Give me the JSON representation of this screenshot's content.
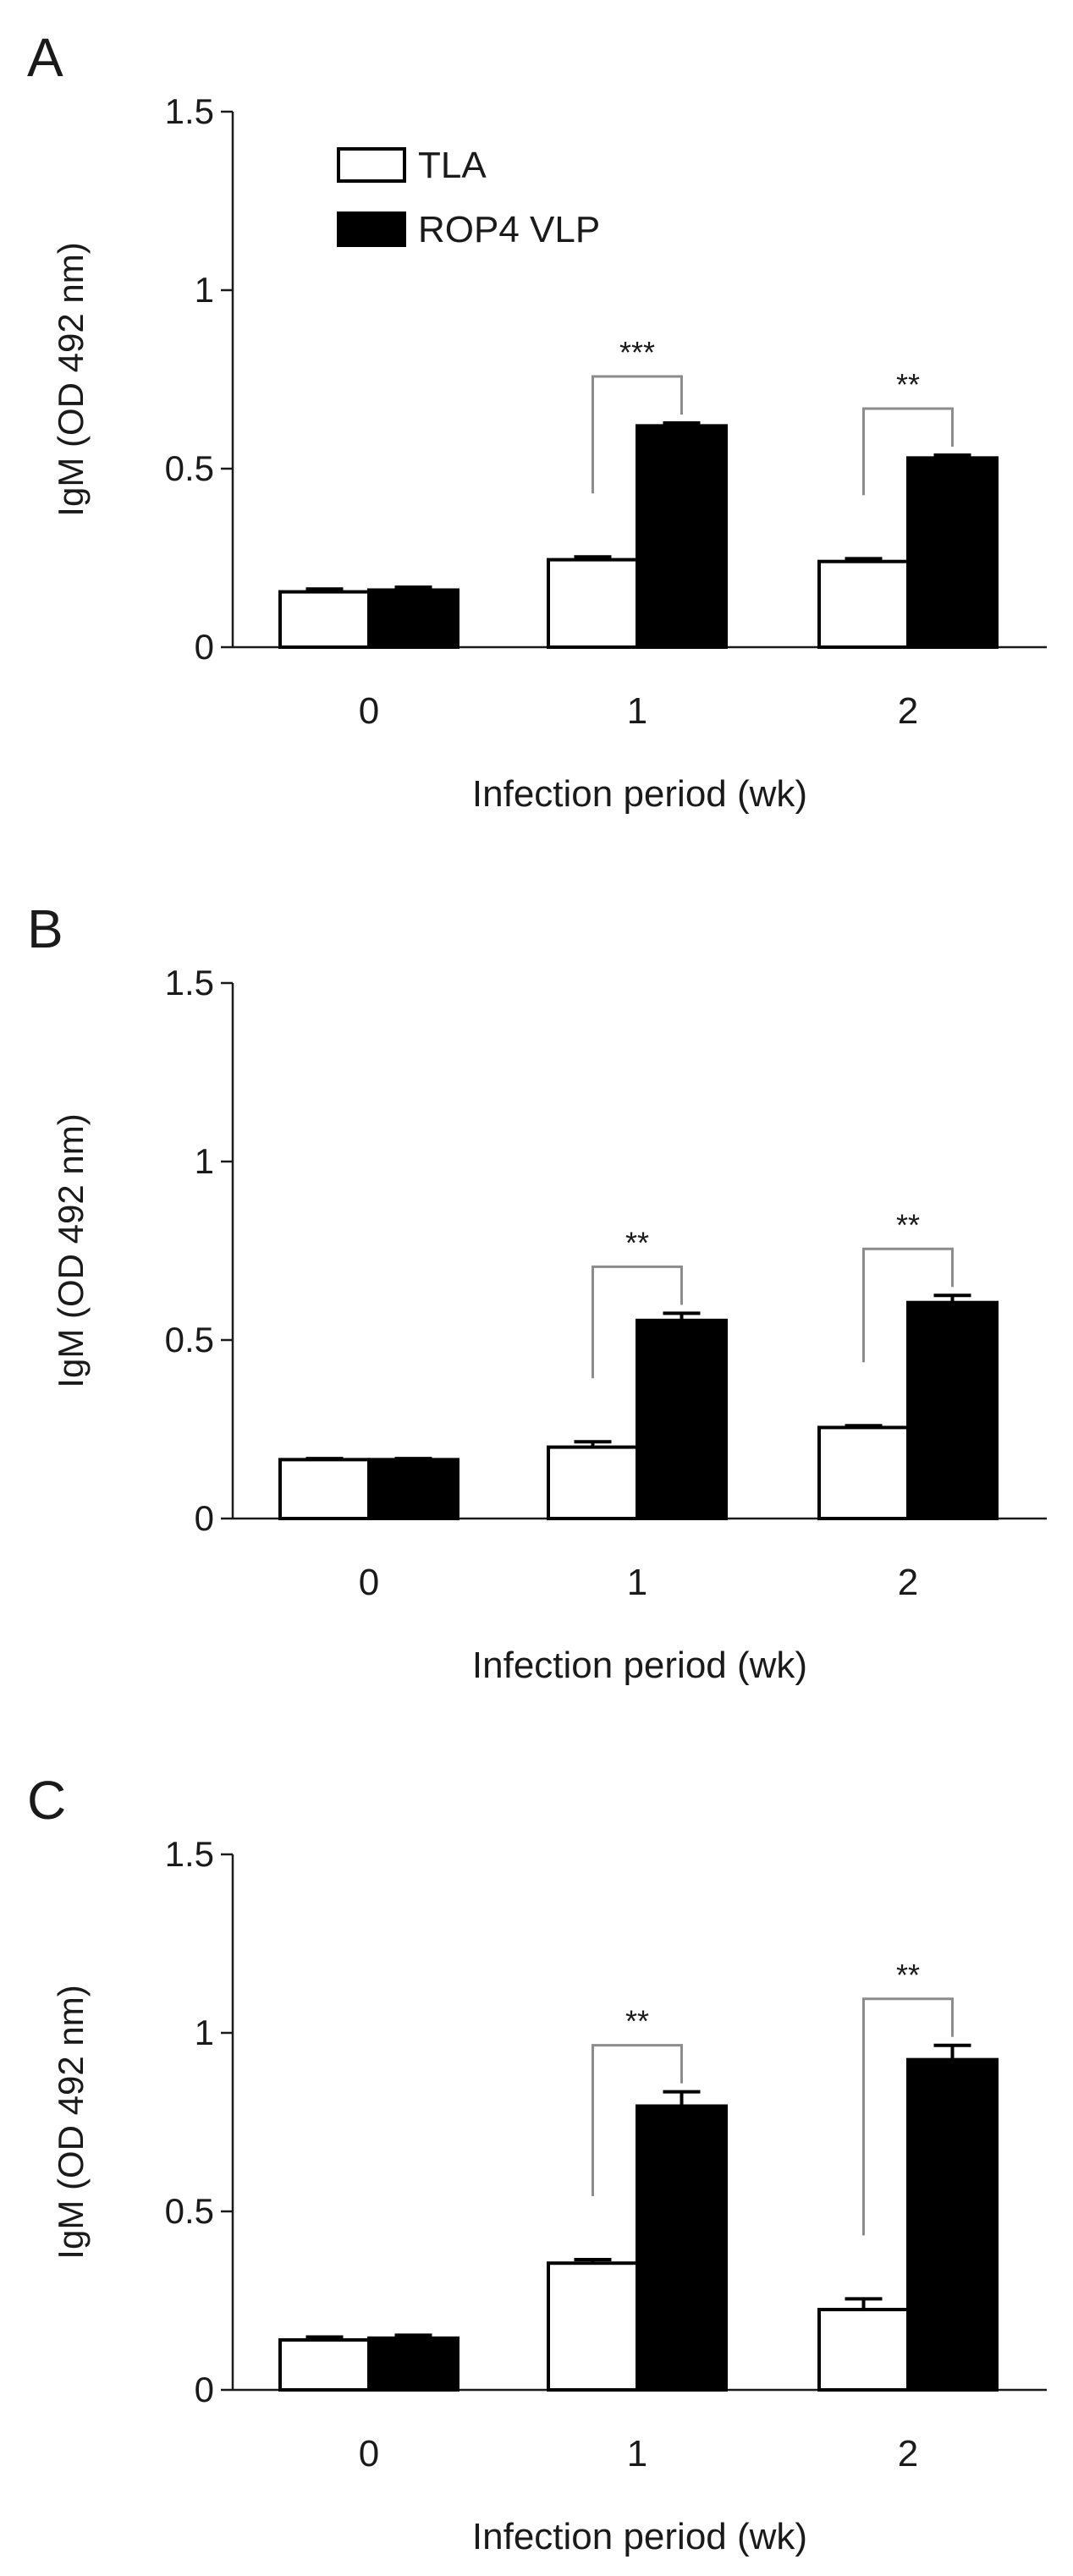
{
  "figure": {
    "legend": [
      {
        "label": "TLA",
        "color": "#ffffff"
      },
      {
        "label": "ROP4 VLP",
        "color": "#000000"
      }
    ]
  },
  "chart_data": [
    {
      "panel": "A",
      "type": "bar",
      "xlabel": "Infection period (wk)",
      "ylabel": "IgM (OD 492 nm)",
      "ylim": [
        0,
        1.5
      ],
      "yticks": [
        "0",
        "0.5",
        "1",
        "1.5"
      ],
      "categories": [
        "0",
        "1",
        "2"
      ],
      "series": [
        {
          "name": "TLA",
          "color": "#ffffff",
          "values": [
            0.155,
            0.245,
            0.24
          ],
          "errors": [
            0.008,
            0.008,
            0.008
          ]
        },
        {
          "name": "ROP4 VLP",
          "color": "#000000",
          "values": [
            0.16,
            0.62,
            0.53
          ],
          "errors": [
            0.008,
            0.008,
            0.008
          ]
        }
      ],
      "significance": [
        {
          "category": "1",
          "label": "***"
        },
        {
          "category": "2",
          "label": "**"
        }
      ],
      "legend": true
    },
    {
      "panel": "B",
      "type": "bar",
      "xlabel": "Infection period (wk)",
      "ylabel": "IgM (OD 492 nm)",
      "ylim": [
        0,
        1.5
      ],
      "yticks": [
        "0",
        "0.5",
        "1",
        "1.5"
      ],
      "categories": [
        "0",
        "1",
        "2"
      ],
      "series": [
        {
          "name": "TLA",
          "color": "#ffffff",
          "values": [
            0.165,
            0.2,
            0.255
          ],
          "errors": [
            0.003,
            0.015,
            0.005
          ]
        },
        {
          "name": "ROP4 VLP",
          "color": "#000000",
          "values": [
            0.165,
            0.555,
            0.605
          ],
          "errors": [
            0.003,
            0.02,
            0.02
          ]
        }
      ],
      "significance": [
        {
          "category": "1",
          "label": "**"
        },
        {
          "category": "2",
          "label": "**"
        }
      ],
      "legend": false
    },
    {
      "panel": "C",
      "type": "bar",
      "xlabel": "Infection period (wk)",
      "ylabel": "IgM (OD 492 nm)",
      "ylim": [
        0,
        1.5
      ],
      "yticks": [
        "0",
        "0.5",
        "1",
        "1.5"
      ],
      "categories": [
        "0",
        "1",
        "2"
      ],
      "series": [
        {
          "name": "TLA",
          "color": "#ffffff",
          "values": [
            0.14,
            0.355,
            0.225
          ],
          "errors": [
            0.008,
            0.01,
            0.03
          ]
        },
        {
          "name": "ROP4 VLP",
          "color": "#000000",
          "values": [
            0.145,
            0.795,
            0.925
          ],
          "errors": [
            0.008,
            0.04,
            0.04
          ]
        }
      ],
      "significance": [
        {
          "category": "1",
          "label": "**"
        },
        {
          "category": "2",
          "label": "**"
        }
      ],
      "legend": false
    }
  ]
}
